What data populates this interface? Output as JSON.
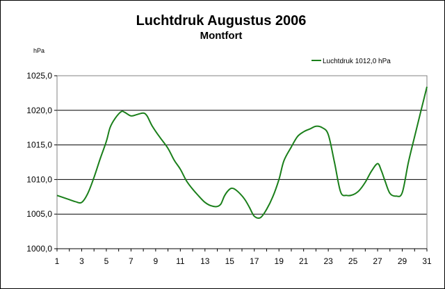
{
  "chart_data": {
    "type": "line",
    "title": "Luchtdruk Augustus 2006",
    "subtitle": "Montfort",
    "ylabel": "hPa",
    "xlabel": "",
    "ylim": [
      1000,
      1025
    ],
    "y_ticks": [
      1000,
      1005,
      1010,
      1015,
      1020,
      1025
    ],
    "y_tick_labels": [
      "1000,0",
      "1005,0",
      "1010,0",
      "1015,0",
      "1020,0",
      "1025,0"
    ],
    "xlim": [
      1,
      31
    ],
    "x_ticks": [
      1,
      3,
      5,
      7,
      9,
      11,
      13,
      15,
      17,
      19,
      21,
      23,
      25,
      27,
      29,
      31
    ],
    "x_tick_labels": [
      "1",
      "3",
      "5",
      "7",
      "9",
      "11",
      "13",
      "15",
      "17",
      "19",
      "21",
      "23",
      "25",
      "27",
      "29",
      "31"
    ],
    "grid": "horizontal",
    "legend_position": "top-right",
    "series": [
      {
        "name": "Luchtdruk 1012,0 hPa",
        "color": "#1a7f1a",
        "points": [
          [
            1,
            1007.7
          ],
          [
            1.5,
            1007.4
          ],
          [
            2,
            1007.1
          ],
          [
            2.5,
            1006.8
          ],
          [
            3,
            1006.7
          ],
          [
            3.5,
            1008.0
          ],
          [
            4,
            1010.3
          ],
          [
            4.5,
            1013.0
          ],
          [
            5,
            1015.5
          ],
          [
            5.3,
            1017.5
          ],
          [
            5.7,
            1018.8
          ],
          [
            6.2,
            1019.8
          ],
          [
            6.5,
            1019.7
          ],
          [
            7,
            1019.2
          ],
          [
            7.5,
            1019.4
          ],
          [
            8,
            1019.6
          ],
          [
            8.3,
            1019.2
          ],
          [
            8.7,
            1017.8
          ],
          [
            9.3,
            1016.2
          ],
          [
            10,
            1014.5
          ],
          [
            10.5,
            1012.8
          ],
          [
            11,
            1011.5
          ],
          [
            11.5,
            1009.8
          ],
          [
            12,
            1008.6
          ],
          [
            12.5,
            1007.6
          ],
          [
            13,
            1006.7
          ],
          [
            13.5,
            1006.2
          ],
          [
            14,
            1006.1
          ],
          [
            14.3,
            1006.5
          ],
          [
            14.6,
            1007.7
          ],
          [
            15,
            1008.6
          ],
          [
            15.3,
            1008.7
          ],
          [
            15.7,
            1008.2
          ],
          [
            16.2,
            1007.2
          ],
          [
            16.6,
            1006.0
          ],
          [
            17,
            1004.7
          ],
          [
            17.5,
            1004.5
          ],
          [
            18,
            1005.7
          ],
          [
            18.5,
            1007.5
          ],
          [
            19,
            1010.0
          ],
          [
            19.4,
            1012.7
          ],
          [
            20,
            1014.7
          ],
          [
            20.5,
            1016.2
          ],
          [
            21,
            1016.9
          ],
          [
            21.5,
            1017.3
          ],
          [
            22,
            1017.7
          ],
          [
            22.5,
            1017.5
          ],
          [
            23,
            1016.5
          ],
          [
            23.5,
            1012.5
          ],
          [
            24,
            1008.2
          ],
          [
            24.5,
            1007.7
          ],
          [
            25,
            1007.8
          ],
          [
            25.5,
            1008.4
          ],
          [
            26,
            1009.6
          ],
          [
            26.5,
            1011.2
          ],
          [
            27,
            1012.3
          ],
          [
            27.3,
            1011.3
          ],
          [
            27.6,
            1009.8
          ],
          [
            28,
            1008.0
          ],
          [
            28.5,
            1007.6
          ],
          [
            29,
            1008.1
          ],
          [
            29.5,
            1012.5
          ],
          [
            30,
            1016.2
          ],
          [
            30.5,
            1019.8
          ],
          [
            31,
            1023.4
          ]
        ]
      }
    ]
  }
}
